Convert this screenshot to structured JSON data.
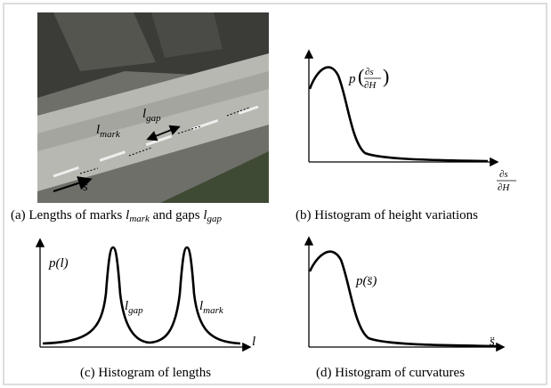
{
  "panel_a": {
    "photo_labels": {
      "gap": {
        "base": "l",
        "sub": "gap"
      },
      "mark": {
        "base": "l",
        "sub": "mark"
      },
      "direction": "s"
    },
    "caption": {
      "text_1": "(a) Lengths of marks",
      "mark": {
        "base": "l",
        "sub": "mark"
      },
      "text_2": "and gaps",
      "gap": {
        "base": "l",
        "sub": "gap"
      }
    }
  },
  "panel_b": {
    "curve_label": {
      "p": "p",
      "num": "∂s",
      "den": "∂H"
    },
    "x_label": {
      "num": "∂s",
      "den": "∂H"
    },
    "caption": "(b) Histogram of height variations"
  },
  "panel_c": {
    "y_label": "p(l)",
    "x_label": "l",
    "peak_1": {
      "base": "l",
      "sub": "gap"
    },
    "peak_2": {
      "base": "l",
      "sub": "mark"
    },
    "caption": "(c) Histogram of lengths"
  },
  "panel_d": {
    "curve_label": "p(s̈)",
    "x_label": "s̈",
    "caption": "(d) Histogram of curvatures"
  }
}
